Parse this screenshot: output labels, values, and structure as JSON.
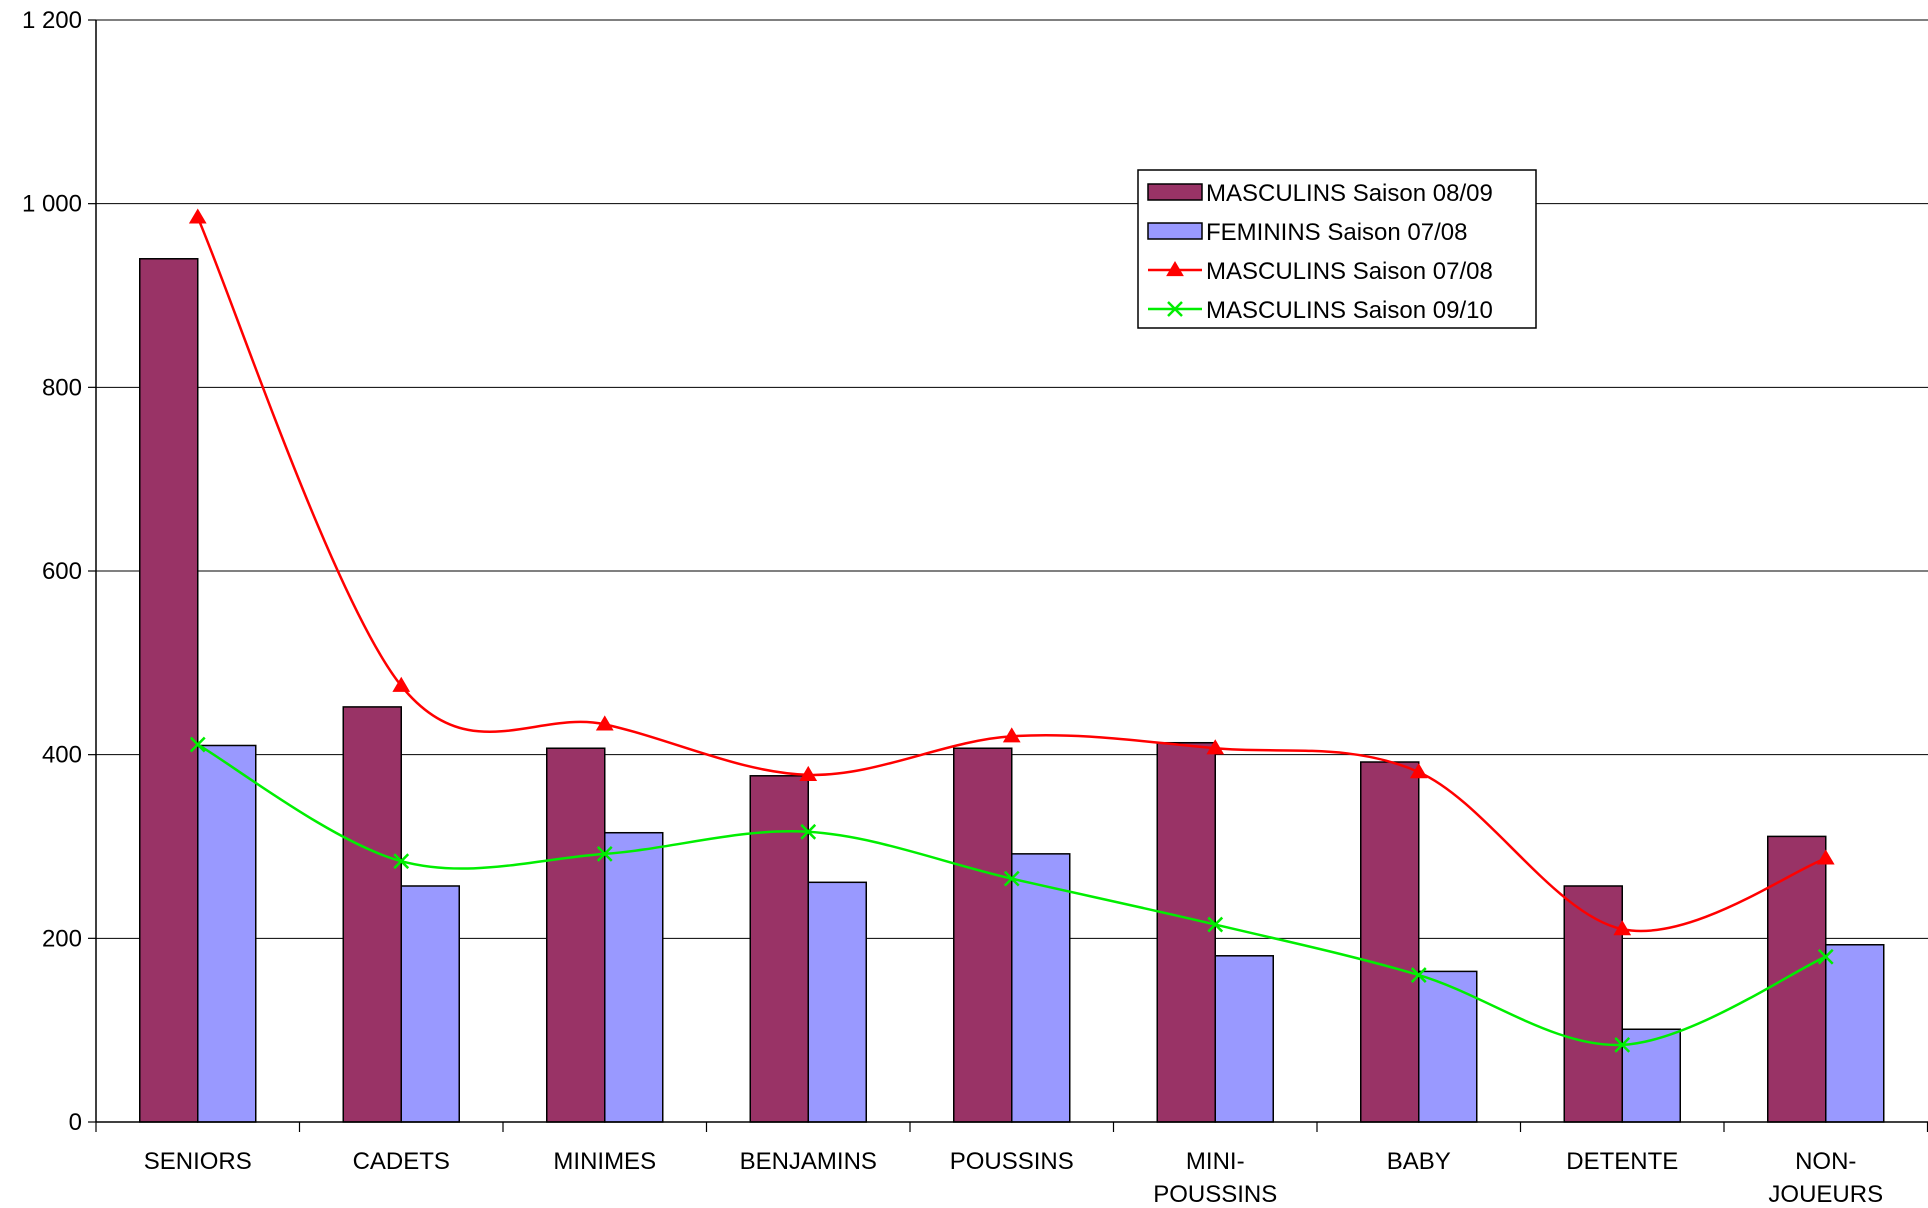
{
  "chart_data": {
    "type": "bar",
    "title": "",
    "xlabel": "",
    "ylabel": "",
    "ylim": [
      0,
      1200
    ],
    "yticks": [
      0,
      200,
      400,
      600,
      800,
      1000,
      1200
    ],
    "ytick_labels": [
      "0",
      "200",
      "400",
      "600",
      "800",
      "1 000",
      "1 200"
    ],
    "grid": true,
    "legend_position": "upper-center",
    "categories": [
      [
        "SENIORS"
      ],
      [
        "CADETS"
      ],
      [
        "MINIMES"
      ],
      [
        "BENJAMINS"
      ],
      [
        "POUSSINS"
      ],
      [
        "MINI-",
        "POUSSINS"
      ],
      [
        "BABY"
      ],
      [
        "DETENTE"
      ],
      [
        "NON-",
        "JOUEURS"
      ]
    ],
    "series": [
      {
        "name": "MASCULINS Saison 08/09",
        "kind": "bar",
        "color": "#993366",
        "values": [
          940,
          452,
          407,
          377,
          407,
          413,
          392,
          257,
          311
        ]
      },
      {
        "name": "FEMININS Saison 07/08",
        "kind": "bar",
        "color": "#9999ff",
        "values": [
          410,
          257,
          315,
          261,
          292,
          181,
          164,
          101,
          193
        ]
      },
      {
        "name": "MASCULINS Saison 07/08",
        "kind": "line",
        "marker": "triangle",
        "smooth": true,
        "color": "#ff0000",
        "values": [
          985,
          475,
          433,
          378,
          420,
          407,
          381,
          210,
          287
        ]
      },
      {
        "name": "MASCULINS Saison 09/10",
        "kind": "line",
        "marker": "x",
        "smooth": true,
        "color": "#00ee00",
        "values": [
          411,
          284,
          292,
          316,
          265,
          215,
          160,
          84,
          180
        ]
      }
    ]
  }
}
